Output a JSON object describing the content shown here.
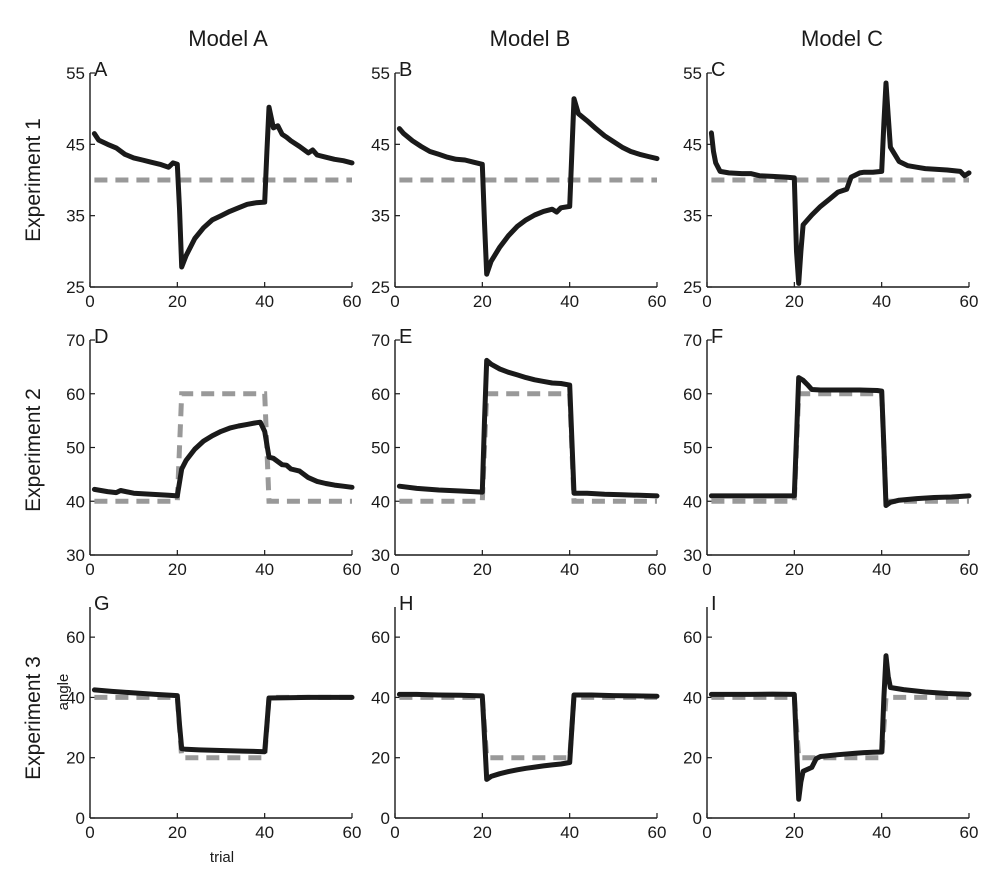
{
  "column_titles": [
    "Model A",
    "Model B",
    "Model C"
  ],
  "row_titles": [
    "Experiment 1",
    "Experiment 2",
    "Experiment 3"
  ],
  "xlabel": "trial",
  "ylabel": "angle",
  "colors": {
    "model": "#1a1a1a",
    "target": "#999999"
  },
  "chart_data": [
    {
      "type": "line",
      "panel": "A",
      "xlim": [
        0,
        60
      ],
      "ylim": [
        25,
        55
      ],
      "xticks": [
        0,
        20,
        40,
        60
      ],
      "yticks": [
        25,
        35,
        45,
        55
      ],
      "series": [
        {
          "role": "target",
          "style": "dashed",
          "x": [
            1,
            60
          ],
          "y": [
            40,
            40
          ]
        },
        {
          "role": "model",
          "style": "solid",
          "x": [
            1,
            2,
            4,
            6,
            8,
            10,
            12,
            14,
            16,
            18,
            19,
            20,
            20.5,
            21,
            22,
            24,
            26,
            28,
            30,
            32,
            34,
            36,
            38,
            40,
            40.5,
            41,
            42,
            43,
            44,
            45,
            46,
            48,
            50,
            51,
            52,
            54,
            56,
            58,
            60
          ],
          "y": [
            46.5,
            45.6,
            45,
            44.5,
            43.6,
            43.1,
            42.8,
            42.5,
            42.2,
            41.8,
            42.4,
            42.2,
            36,
            27.8,
            29.4,
            31.8,
            33.3,
            34.4,
            35,
            35.6,
            36.1,
            36.6,
            36.8,
            36.9,
            44,
            50.2,
            47.3,
            47.6,
            46.4,
            46,
            45.5,
            44.7,
            43.8,
            44.2,
            43.5,
            43.2,
            42.9,
            42.7,
            42.4
          ]
        }
      ]
    },
    {
      "type": "line",
      "panel": "B",
      "xlim": [
        0,
        60
      ],
      "ylim": [
        25,
        55
      ],
      "xticks": [
        0,
        20,
        40,
        60
      ],
      "yticks": [
        25,
        35,
        45,
        55
      ],
      "series": [
        {
          "role": "target",
          "style": "dashed",
          "x": [
            1,
            60
          ],
          "y": [
            40,
            40
          ]
        },
        {
          "role": "model",
          "style": "solid",
          "x": [
            1,
            2,
            4,
            6,
            8,
            10,
            12,
            14,
            16,
            18,
            20,
            20.5,
            21,
            22,
            24,
            26,
            28,
            30,
            32,
            34,
            36,
            37,
            38,
            40,
            40.5,
            41,
            42,
            44,
            46,
            48,
            50,
            52,
            54,
            56,
            58,
            60
          ],
          "y": [
            47.2,
            46.5,
            45.5,
            44.7,
            44,
            43.6,
            43.2,
            42.9,
            42.8,
            42.5,
            42.2,
            34,
            26.8,
            28.6,
            30.6,
            32.2,
            33.5,
            34.4,
            35.1,
            35.6,
            35.9,
            35.5,
            36.1,
            36.3,
            44,
            51.4,
            49.3,
            48.3,
            47.2,
            46.2,
            45.4,
            44.6,
            44,
            43.6,
            43.3,
            43
          ]
        }
      ]
    },
    {
      "type": "line",
      "panel": "C",
      "xlim": [
        0,
        60
      ],
      "ylim": [
        25,
        55
      ],
      "xticks": [
        0,
        20,
        40,
        60
      ],
      "yticks": [
        25,
        35,
        45,
        55
      ],
      "series": [
        {
          "role": "target",
          "style": "dashed",
          "x": [
            1,
            60
          ],
          "y": [
            40,
            40
          ]
        },
        {
          "role": "model",
          "style": "solid",
          "x": [
            1,
            1.5,
            2,
            3,
            5,
            8,
            10,
            12,
            15,
            18,
            20,
            20.5,
            21,
            21.5,
            22,
            24,
            26,
            28,
            30,
            32,
            33,
            34,
            35,
            36,
            38,
            40,
            40.5,
            41,
            41.5,
            42,
            44,
            46,
            48,
            50,
            55,
            58,
            59,
            60
          ],
          "y": [
            46.6,
            44,
            42.4,
            41.2,
            41,
            40.9,
            40.9,
            40.6,
            40.5,
            40.4,
            40.3,
            30,
            25.5,
            30,
            33.7,
            35.1,
            36.3,
            37.3,
            38.3,
            38.7,
            40.4,
            40.7,
            41,
            41.1,
            41.1,
            41.2,
            48,
            53.6,
            49,
            44.6,
            42.6,
            42,
            41.8,
            41.6,
            41.4,
            41.2,
            40.6,
            41
          ]
        }
      ]
    },
    {
      "type": "line",
      "panel": "D",
      "xlim": [
        0,
        60
      ],
      "ylim": [
        30,
        70
      ],
      "xticks": [
        0,
        20,
        40,
        60
      ],
      "yticks": [
        30,
        40,
        50,
        60,
        70
      ],
      "series": [
        {
          "role": "target",
          "style": "dashed",
          "x": [
            1,
            20,
            21,
            39,
            40,
            41,
            60
          ],
          "y": [
            40,
            40,
            60,
            60,
            60,
            40,
            40
          ]
        },
        {
          "role": "model",
          "style": "solid",
          "x": [
            1,
            4,
            6,
            7,
            10,
            14,
            18,
            20,
            21,
            22,
            24,
            26,
            28,
            30,
            32,
            34,
            36,
            38,
            39,
            40,
            41,
            42,
            44,
            45,
            46,
            48,
            50,
            52,
            54,
            56,
            58,
            60
          ],
          "y": [
            42.2,
            41.8,
            41.6,
            42,
            41.5,
            41.3,
            41.1,
            41,
            46,
            47.6,
            49.7,
            51.2,
            52.2,
            53,
            53.6,
            54,
            54.3,
            54.6,
            54.7,
            53,
            48.2,
            48,
            46.8,
            46.7,
            46,
            45.6,
            44.4,
            43.7,
            43.3,
            43,
            42.8,
            42.6
          ]
        }
      ]
    },
    {
      "type": "line",
      "panel": "E",
      "xlim": [
        0,
        60
      ],
      "ylim": [
        30,
        70
      ],
      "xticks": [
        0,
        20,
        40,
        60
      ],
      "yticks": [
        30,
        40,
        50,
        60,
        70
      ],
      "series": [
        {
          "role": "target",
          "style": "dashed",
          "x": [
            1,
            20,
            21,
            39,
            40,
            41,
            60
          ],
          "y": [
            40,
            40,
            60,
            60,
            60,
            40,
            40
          ]
        },
        {
          "role": "model",
          "style": "solid",
          "x": [
            1,
            5,
            10,
            15,
            20,
            20.5,
            21,
            22,
            24,
            26,
            28,
            30,
            32,
            34,
            36,
            38,
            40,
            41,
            44,
            48,
            52,
            56,
            60
          ],
          "y": [
            42.8,
            42.4,
            42.1,
            41.9,
            41.7,
            55,
            66.2,
            65.5,
            64.6,
            64,
            63.5,
            63,
            62.6,
            62.3,
            62,
            61.9,
            61.6,
            41.5,
            41.5,
            41.3,
            41.2,
            41.1,
            41
          ]
        }
      ]
    },
    {
      "type": "line",
      "panel": "F",
      "xlim": [
        0,
        60
      ],
      "ylim": [
        30,
        70
      ],
      "xticks": [
        0,
        20,
        40,
        60
      ],
      "yticks": [
        30,
        40,
        50,
        60,
        70
      ],
      "series": [
        {
          "role": "target",
          "style": "dashed",
          "x": [
            1,
            20,
            21,
            39,
            40,
            41,
            60
          ],
          "y": [
            40,
            40,
            60,
            60,
            60,
            40,
            40
          ]
        },
        {
          "role": "model",
          "style": "solid",
          "x": [
            1,
            5,
            10,
            15,
            20,
            20.5,
            21,
            22,
            23,
            24,
            26,
            30,
            35,
            39,
            40,
            40.5,
            41,
            42,
            44,
            48,
            52,
            56,
            60
          ],
          "y": [
            41,
            41,
            41,
            41,
            41,
            52,
            63,
            62.5,
            61.7,
            60.8,
            60.7,
            60.7,
            60.7,
            60.6,
            60.5,
            50,
            39.2,
            39.8,
            40.2,
            40.5,
            40.7,
            40.8,
            41
          ]
        }
      ]
    },
    {
      "type": "line",
      "panel": "G",
      "xlim": [
        0,
        60
      ],
      "ylim": [
        0,
        70
      ],
      "xticks": [
        0,
        20,
        40,
        60
      ],
      "yticks": [
        0,
        20,
        40,
        60
      ],
      "series": [
        {
          "role": "target",
          "style": "dashed",
          "x": [
            1,
            20,
            21,
            40,
            41,
            60
          ],
          "y": [
            40,
            40,
            20,
            20,
            40,
            40
          ]
        },
        {
          "role": "model",
          "style": "solid",
          "x": [
            1,
            5,
            10,
            15,
            20,
            20.5,
            21,
            22,
            25,
            30,
            35,
            40,
            40.5,
            41,
            45,
            50,
            55,
            60
          ],
          "y": [
            42.5,
            42,
            41.5,
            41,
            40.6,
            31,
            23,
            22.8,
            22.6,
            22.4,
            22.2,
            22,
            31,
            39.8,
            39.9,
            40,
            40,
            40
          ]
        }
      ]
    },
    {
      "type": "line",
      "panel": "H",
      "xlim": [
        0,
        60
      ],
      "ylim": [
        0,
        70
      ],
      "xticks": [
        0,
        20,
        40,
        60
      ],
      "yticks": [
        0,
        20,
        40,
        60
      ],
      "series": [
        {
          "role": "target",
          "style": "dashed",
          "x": [
            1,
            20,
            21,
            40,
            41,
            60
          ],
          "y": [
            40,
            40,
            20,
            20,
            40,
            40
          ]
        },
        {
          "role": "model",
          "style": "solid",
          "x": [
            1,
            5,
            10,
            15,
            20,
            20.5,
            21,
            22,
            24,
            26,
            28,
            30,
            32,
            34,
            36,
            38,
            40,
            40.5,
            41,
            45,
            50,
            55,
            60
          ],
          "y": [
            41,
            41,
            40.8,
            40.7,
            40.5,
            27,
            12.8,
            13.8,
            14.7,
            15.4,
            16,
            16.5,
            16.9,
            17.3,
            17.6,
            17.9,
            18.4,
            30,
            40.8,
            40.8,
            40.6,
            40.5,
            40.4
          ]
        }
      ]
    },
    {
      "type": "line",
      "panel": "I",
      "xlim": [
        0,
        60
      ],
      "ylim": [
        0,
        70
      ],
      "xticks": [
        0,
        20,
        40,
        60
      ],
      "yticks": [
        0,
        20,
        40,
        60
      ],
      "series": [
        {
          "role": "target",
          "style": "dashed",
          "x": [
            1,
            20,
            21,
            40,
            41,
            60
          ],
          "y": [
            40,
            40,
            20,
            20,
            40,
            40
          ]
        },
        {
          "role": "model",
          "style": "solid",
          "x": [
            1,
            5,
            10,
            15,
            20,
            20.5,
            21,
            21.5,
            22,
            24,
            25,
            26,
            30,
            34,
            36,
            38,
            40,
            40.5,
            41,
            41.5,
            42,
            45,
            50,
            55,
            60
          ],
          "y": [
            41,
            41,
            41,
            41.1,
            41,
            24,
            6.2,
            12,
            15.5,
            16.8,
            19.7,
            20.4,
            21,
            21.5,
            21.7,
            21.8,
            21.9,
            40,
            53.8,
            47,
            43.3,
            42.6,
            41.8,
            41.3,
            41
          ]
        }
      ]
    }
  ]
}
